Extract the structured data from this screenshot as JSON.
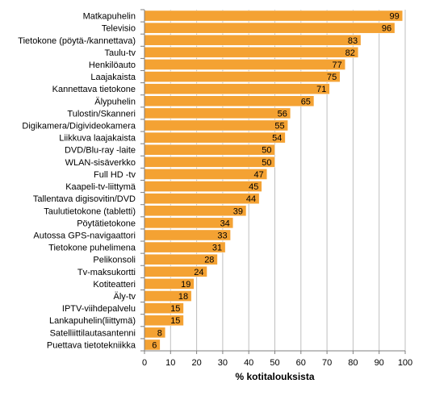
{
  "chart_data": {
    "type": "bar",
    "orientation": "horizontal",
    "categories": [
      "Matkapuhelin",
      "Televisio",
      "Tietokone (pöytä-/kannettava)",
      "Taulu-tv",
      "Henkilöauto",
      "Laajakaista",
      "Kannettava tietokone",
      "Älypuhelin",
      "Tulostin/Skanneri",
      "Digikamera/Digivideokamera",
      "Liikkuva laajakaista",
      "DVD/Blu-ray -laite",
      "WLAN-sisäverkko",
      "Full HD -tv",
      "Kaapeli-tv-liittymä",
      "Tallentava digisovitin/DVD",
      "Taulutietokone (tabletti)",
      "Pöytätietokone",
      "Autossa GPS-navigaattori",
      "Tietokone puhelimena",
      "Pelikonsoli",
      "Tv-maksukortti",
      "Kotiteatteri",
      "Äly-tv",
      "IPTV-viihdepalvelu",
      "Lankapuhelin(liittymä)",
      "Satelliittilautasantenni",
      "Puettava tietotekniikka"
    ],
    "values": [
      99,
      96,
      83,
      82,
      77,
      75,
      71,
      65,
      56,
      55,
      54,
      50,
      50,
      47,
      45,
      44,
      39,
      34,
      33,
      31,
      28,
      24,
      19,
      18,
      15,
      15,
      8,
      6
    ],
    "xlabel": "% kotitalouksista",
    "ylabel": "",
    "xlim": [
      0,
      100
    ],
    "xticks": [
      0,
      10,
      20,
      30,
      40,
      50,
      60,
      70,
      80,
      90,
      100
    ],
    "grid": "vertical",
    "bar_color": "#F4A233",
    "bar_edge_color": "#ffffff",
    "grid_color": "#bfbfbf",
    "axis_color": "#7f7f7f"
  }
}
